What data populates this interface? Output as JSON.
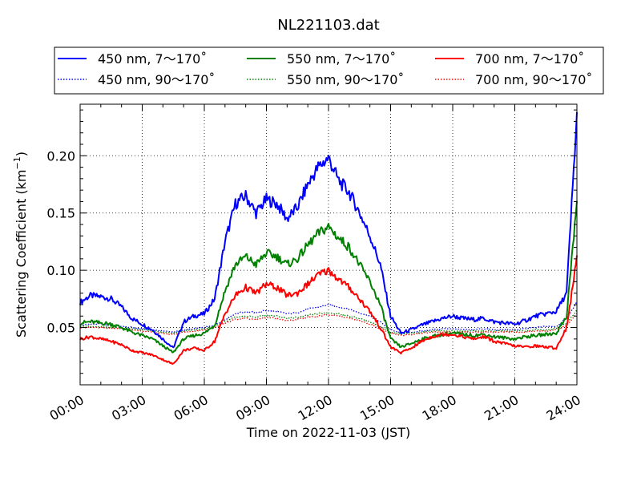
{
  "chart_data": {
    "type": "line",
    "title": "NL221103.dat",
    "xlabel": "Time on 2022-11-03 (JST)",
    "ylabel": "Scattering Coefficient (km",
    "ylabel_exp": "−1",
    "ylabel_tail": ")",
    "xlim": [
      "2022-11-03 00:00",
      "2022-11-04 00:00"
    ],
    "ylim": [
      0.0,
      0.245
    ],
    "xlim_hours": [
      0,
      24
    ],
    "x_ticks": [
      "00:00",
      "03:00",
      "06:00",
      "09:00",
      "12:00",
      "15:00",
      "18:00",
      "21:00",
      "24:00"
    ],
    "x_tick_hours": [
      0,
      3,
      6,
      9,
      12,
      15,
      18,
      21,
      24
    ],
    "y_ticks": [
      "0.05",
      "0.10",
      "0.15",
      "0.20"
    ],
    "y_tick_values": [
      0.05,
      0.1,
      0.15,
      0.2
    ],
    "grid": true,
    "legend_position": "top, above plot (3 columns)",
    "x_hours": [
      0,
      0.5,
      1,
      1.5,
      2,
      2.5,
      3,
      3.5,
      4,
      4.5,
      5,
      5.5,
      6,
      6.5,
      7,
      7.5,
      8,
      8.5,
      9,
      9.5,
      10,
      10.5,
      11,
      11.5,
      12,
      12.5,
      13,
      13.5,
      14,
      14.5,
      15,
      15.5,
      16,
      16.5,
      17,
      17.5,
      18,
      18.5,
      19,
      19.5,
      20,
      20.5,
      21,
      21.5,
      22,
      22.5,
      23,
      23.5,
      24
    ],
    "series": [
      {
        "name": "450 nm, 7～170˚",
        "color": "#0000ff",
        "style": "solid",
        "values": [
          0.072,
          0.078,
          0.077,
          0.075,
          0.068,
          0.058,
          0.053,
          0.048,
          0.04,
          0.032,
          0.055,
          0.06,
          0.062,
          0.075,
          0.125,
          0.158,
          0.165,
          0.15,
          0.162,
          0.158,
          0.145,
          0.155,
          0.175,
          0.19,
          0.198,
          0.178,
          0.168,
          0.15,
          0.13,
          0.105,
          0.06,
          0.045,
          0.048,
          0.052,
          0.055,
          0.058,
          0.06,
          0.058,
          0.057,
          0.058,
          0.055,
          0.054,
          0.053,
          0.056,
          0.06,
          0.062,
          0.064,
          0.08,
          0.235
        ]
      },
      {
        "name": "450 nm, 90～170˚",
        "color": "#0000ff",
        "style": "dotted",
        "values": [
          0.052,
          0.053,
          0.053,
          0.052,
          0.051,
          0.05,
          0.049,
          0.048,
          0.047,
          0.046,
          0.048,
          0.049,
          0.05,
          0.052,
          0.057,
          0.062,
          0.064,
          0.063,
          0.065,
          0.064,
          0.062,
          0.063,
          0.066,
          0.068,
          0.07,
          0.068,
          0.066,
          0.063,
          0.06,
          0.055,
          0.048,
          0.045,
          0.046,
          0.047,
          0.048,
          0.049,
          0.049,
          0.048,
          0.048,
          0.049,
          0.048,
          0.048,
          0.048,
          0.049,
          0.05,
          0.051,
          0.051,
          0.058,
          0.072
        ]
      },
      {
        "name": "550 nm, 7～170˚",
        "color": "#008000",
        "style": "solid",
        "values": [
          0.054,
          0.055,
          0.054,
          0.053,
          0.05,
          0.046,
          0.043,
          0.04,
          0.034,
          0.028,
          0.04,
          0.043,
          0.045,
          0.052,
          0.082,
          0.105,
          0.112,
          0.105,
          0.115,
          0.112,
          0.105,
          0.11,
          0.122,
          0.132,
          0.138,
          0.128,
          0.12,
          0.105,
          0.09,
          0.07,
          0.04,
          0.033,
          0.036,
          0.04,
          0.042,
          0.044,
          0.045,
          0.044,
          0.043,
          0.044,
          0.042,
          0.041,
          0.04,
          0.042,
          0.043,
          0.044,
          0.045,
          0.06,
          0.16
        ]
      },
      {
        "name": "550 nm, 90～170˚",
        "color": "#008000",
        "style": "dotted",
        "values": [
          0.051,
          0.051,
          0.051,
          0.05,
          0.05,
          0.049,
          0.048,
          0.047,
          0.046,
          0.045,
          0.047,
          0.048,
          0.049,
          0.051,
          0.055,
          0.059,
          0.06,
          0.059,
          0.061,
          0.06,
          0.058,
          0.059,
          0.061,
          0.062,
          0.063,
          0.062,
          0.06,
          0.058,
          0.055,
          0.051,
          0.046,
          0.044,
          0.045,
          0.046,
          0.047,
          0.047,
          0.047,
          0.047,
          0.047,
          0.047,
          0.047,
          0.047,
          0.047,
          0.047,
          0.048,
          0.048,
          0.049,
          0.054,
          0.065
        ]
      },
      {
        "name": "700 nm, 7～170˚",
        "color": "#ff0000",
        "style": "solid",
        "values": [
          0.04,
          0.042,
          0.04,
          0.038,
          0.035,
          0.03,
          0.028,
          0.026,
          0.022,
          0.018,
          0.03,
          0.032,
          0.03,
          0.038,
          0.062,
          0.078,
          0.085,
          0.08,
          0.088,
          0.085,
          0.078,
          0.08,
          0.088,
          0.096,
          0.1,
          0.092,
          0.085,
          0.075,
          0.064,
          0.05,
          0.033,
          0.028,
          0.032,
          0.038,
          0.042,
          0.044,
          0.044,
          0.042,
          0.04,
          0.042,
          0.038,
          0.036,
          0.034,
          0.033,
          0.034,
          0.033,
          0.032,
          0.05,
          0.11
        ]
      },
      {
        "name": "700 nm, 90～170˚",
        "color": "#ff0000",
        "style": "dotted",
        "values": [
          0.05,
          0.05,
          0.05,
          0.049,
          0.049,
          0.048,
          0.047,
          0.046,
          0.045,
          0.044,
          0.046,
          0.047,
          0.048,
          0.05,
          0.054,
          0.057,
          0.058,
          0.057,
          0.059,
          0.058,
          0.056,
          0.057,
          0.059,
          0.06,
          0.061,
          0.06,
          0.058,
          0.056,
          0.053,
          0.049,
          0.045,
          0.043,
          0.044,
          0.045,
          0.046,
          0.046,
          0.046,
          0.046,
          0.046,
          0.046,
          0.046,
          0.046,
          0.046,
          0.046,
          0.047,
          0.047,
          0.048,
          0.052,
          0.062
        ]
      }
    ]
  }
}
